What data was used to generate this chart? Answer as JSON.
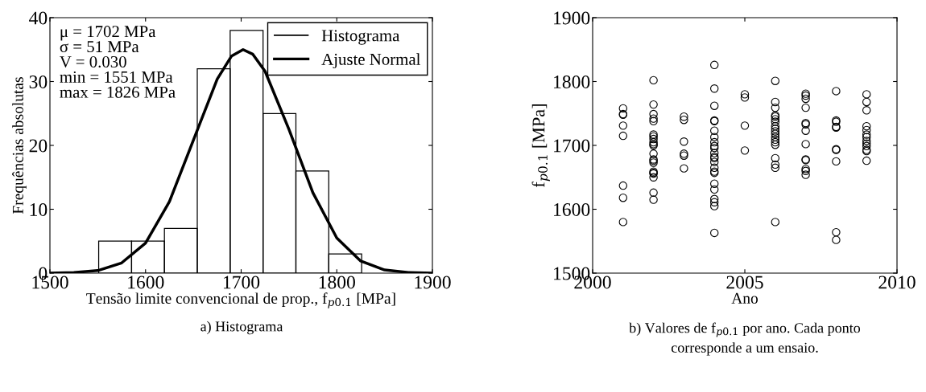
{
  "chart_data": [
    {
      "type": "histogram",
      "xlabel": "Tensão limite convencional de prop., f$_{p0.1}$ [MPa]",
      "ylabel": "Frequências absolutas",
      "series": [
        {
          "name": "Histograma",
          "type": "histogram",
          "color": "#000000",
          "bins": [
            1551,
            1585.4,
            1619.75,
            1654.1,
            1688.5,
            1722.9,
            1757.25,
            1791.6,
            1826
          ],
          "values": [
            5,
            5,
            7,
            32,
            38,
            25,
            16,
            3
          ]
        },
        {
          "name": "Ajuste Normal",
          "type": "line",
          "color": "#000000",
          "x": [
            1500,
            1525,
            1550,
            1575,
            1600,
            1625,
            1650,
            1675,
            1690,
            1702,
            1712,
            1725,
            1750,
            1775,
            1800,
            1825,
            1850,
            1875,
            1900
          ],
          "values": [
            0,
            0.1,
            0.4,
            1.6,
            4.7,
            11.2,
            20.8,
            30.4,
            34.0,
            35,
            34.3,
            31.6,
            22.5,
            12.6,
            5.5,
            1.9,
            0.5,
            0.1,
            0
          ]
        }
      ],
      "xlim": [
        1500,
        1900
      ],
      "xticks": [
        1500,
        1600,
        1700,
        1800,
        1900
      ],
      "ylim": [
        0,
        40
      ],
      "yticks": [
        0,
        10,
        20,
        30,
        40
      ],
      "grid": false,
      "legend": "top right",
      "annotations": [
        "μ = 1702 MPa\nσ = 51 MPa\nV = 0.030\nmin = 1551 MPa\nmax = 1826 MPa",
        "a) Histograma"
      ]
    },
    {
      "type": "scatter",
      "xlabel": "Ano",
      "ylabel": "f$_{p0.1}$ [MPa]",
      "marker": "circle",
      "grid": false,
      "x": [
        2001,
        2001,
        2001,
        2001,
        2001,
        2001,
        2001,
        2001,
        2002,
        2002,
        2002,
        2002,
        2002,
        2002,
        2002,
        2002,
        2002,
        2002,
        2002,
        2002,
        2002,
        2002,
        2002,
        2002,
        2002,
        2002,
        2002,
        2002,
        2002,
        2003,
        2003,
        2003,
        2003,
        2003,
        2003,
        2004,
        2004,
        2004,
        2004,
        2004,
        2004,
        2004,
        2004,
        2004,
        2004,
        2004,
        2004,
        2004,
        2004,
        2004,
        2004,
        2004,
        2004,
        2004,
        2004,
        2004,
        2004,
        2004,
        2005,
        2005,
        2005,
        2005,
        2006,
        2006,
        2006,
        2006,
        2006,
        2006,
        2006,
        2006,
        2006,
        2006,
        2006,
        2006,
        2006,
        2006,
        2006,
        2006,
        2006,
        2006,
        2006,
        2007,
        2007,
        2007,
        2007,
        2007,
        2007,
        2007,
        2007,
        2007,
        2007,
        2007,
        2007,
        2007,
        2008,
        2008,
        2008,
        2008,
        2008,
        2008,
        2008,
        2008,
        2008,
        2008,
        2009,
        2009,
        2009,
        2009,
        2009,
        2009,
        2009,
        2009,
        2009,
        2009,
        2009,
        2009,
        2009
      ],
      "series": [
        {
          "color": "#000000",
          "values": [
            1758,
            1749,
            1748,
            1731,
            1715,
            1637,
            1618,
            1580,
            1802,
            1764,
            1749,
            1742,
            1738,
            1717,
            1714,
            1710,
            1705,
            1702,
            1700,
            1687,
            1678,
            1676,
            1673,
            1659,
            1657,
            1656,
            1650,
            1626,
            1615,
            1745,
            1740,
            1706,
            1687,
            1684,
            1664,
            1826,
            1789,
            1762,
            1739,
            1738,
            1723,
            1713,
            1705,
            1699,
            1696,
            1688,
            1682,
            1680,
            1674,
            1665,
            1659,
            1657,
            1640,
            1631,
            1616,
            1611,
            1605,
            1563,
            1780,
            1775,
            1731,
            1692,
            1801,
            1768,
            1759,
            1747,
            1745,
            1741,
            1737,
            1730,
            1726,
            1722,
            1718,
            1713,
            1709,
            1705,
            1701,
            1680,
            1670,
            1665,
            1580,
            1781,
            1778,
            1773,
            1759,
            1735,
            1733,
            1723,
            1702,
            1678,
            1677,
            1663,
            1660,
            1654,
            1785,
            1739,
            1737,
            1729,
            1728,
            1694,
            1693,
            1675,
            1564,
            1552,
            1780,
            1768,
            1755,
            1730,
            1724,
            1717,
            1713,
            1707,
            1703,
            1699,
            1693,
            1691,
            1676
          ]
        }
      ],
      "xlim": [
        2000,
        2010
      ],
      "xticks": [
        2000,
        2005,
        2010
      ],
      "ylim": [
        1500,
        1900
      ],
      "yticks": [
        1500,
        1600,
        1700,
        1800,
        1900
      ],
      "annotations": [
        "b) Valores de f$_{p0.1}$ por ano. Cada ponto\ncorresponde a um ensaio."
      ]
    }
  ]
}
